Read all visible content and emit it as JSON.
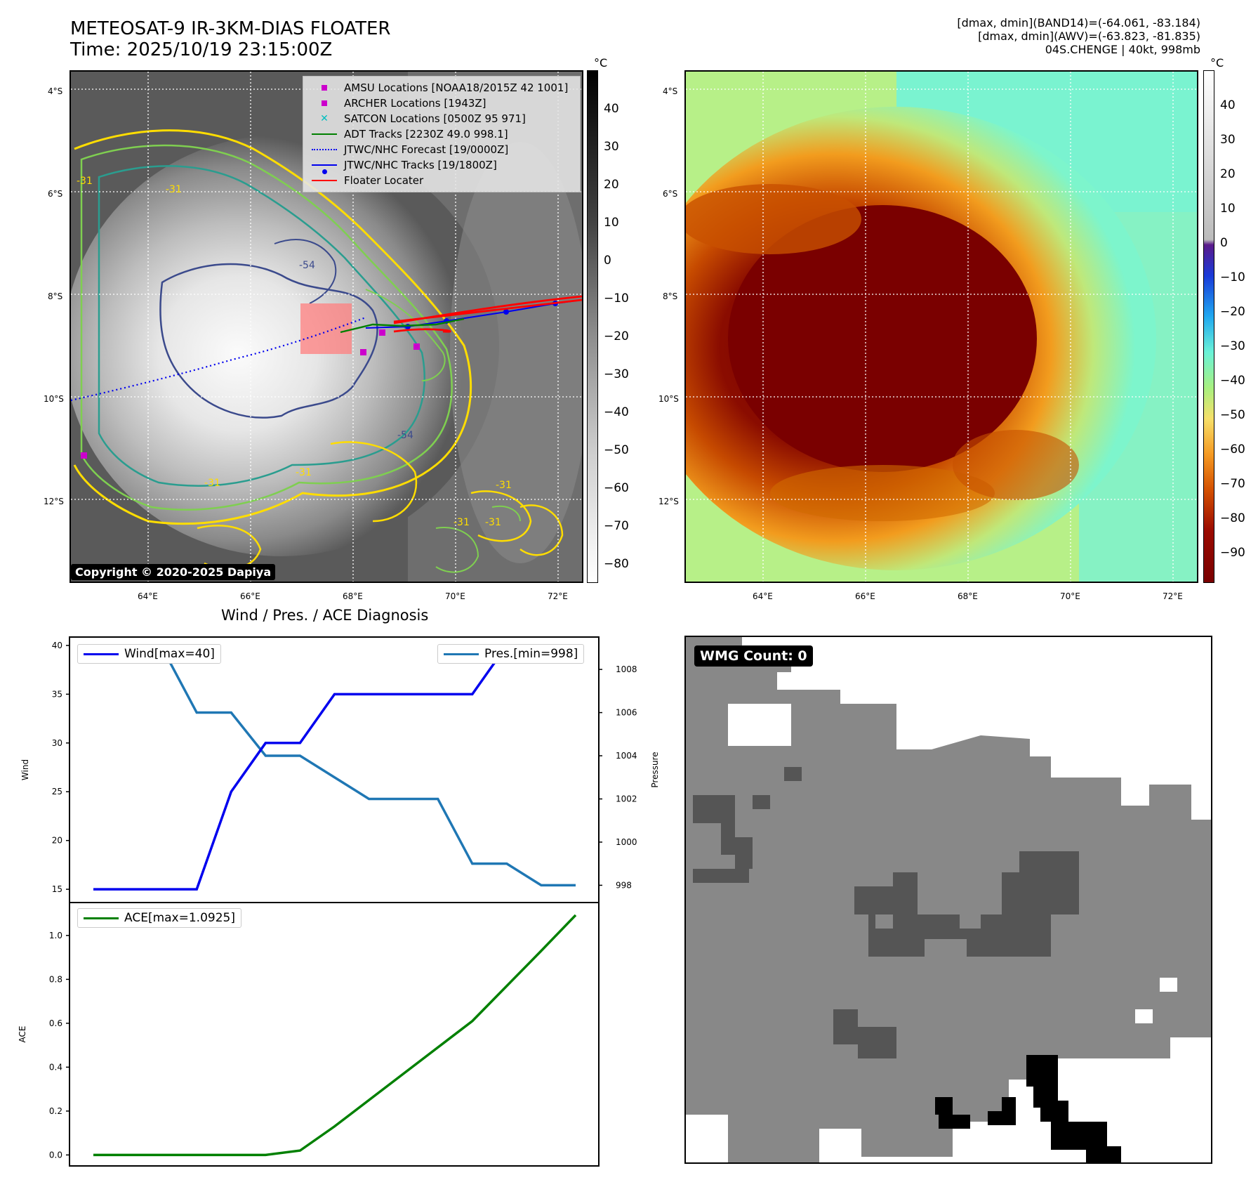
{
  "header": {
    "title_line1": "METEOSAT-9 IR-3KM-DIAS FLOATER",
    "title_line2": "Time: 2025/10/19 23:15:00Z",
    "right_line1": "[dmax, dmin](BAND14)=(-64.061, -83.184)",
    "right_line2": "[dmax, dmin](AWV)=(-63.823, -81.835)",
    "right_line3": "04S.CHENGE | 40kt, 998mb"
  },
  "map_axes": {
    "lat_labels": [
      "4°S",
      "6°S",
      "8°S",
      "10°S",
      "12°S"
    ],
    "lon_labels": [
      "64°E",
      "66°E",
      "68°E",
      "70°E",
      "72°E"
    ]
  },
  "ir_colorbar": {
    "unit": "°C",
    "ticks": [
      "40",
      "30",
      "20",
      "10",
      "0",
      "−10",
      "−20",
      "−30",
      "−40",
      "−50",
      "−60",
      "−70",
      "−80"
    ]
  },
  "awv_colorbar": {
    "unit": "°C",
    "ticks": [
      "40",
      "30",
      "20",
      "10",
      "0",
      "−10",
      "−20",
      "−30",
      "−40",
      "−50",
      "−60",
      "−70",
      "−80",
      "−90"
    ]
  },
  "legend": {
    "amsu": "AMSU Locations [NOAA18/2015Z 42 1001]",
    "archer": "ARCHER Locations [1943Z]",
    "satcon": "SATCON Locations [0500Z 95 971]",
    "adt": "ADT Tracks [2230Z 49.0 998.1]",
    "jtwc_forecast": "JTWC/NHC Forecast [19/0000Z]",
    "jtwc_tracks": "JTWC/NHC Tracks [19/1800Z]",
    "floater": "Floater Locater"
  },
  "contour_labels": [
    "-31",
    "-31",
    "-54",
    "-54",
    "-31",
    "-31",
    "-31",
    "-31",
    "-31"
  ],
  "copyright": "Copyright © 2020-2025 Dapiya",
  "wmg": {
    "label": "WMG Count: 0"
  },
  "colors": {
    "wind": "#0000ee",
    "pressure": "#1f77b4",
    "ace": "#008000",
    "floater": "#ff0000",
    "marker": "#cc00cc",
    "satcon": "#00bfbf"
  },
  "chart_data": [
    {
      "type": "line",
      "title": "Wind / Pres. / ACE Diagnosis",
      "ylabel": "Wind",
      "ylabel_right": "Pressure",
      "ylim": [
        14,
        40.5
      ],
      "ylim_right": [
        997.2,
        1009.5
      ],
      "yticks": [
        15,
        20,
        25,
        30,
        35,
        40
      ],
      "yticks_right": [
        998,
        1000,
        1002,
        1004,
        1006,
        1008
      ],
      "x": [
        0,
        1,
        2,
        3,
        4,
        5,
        6,
        7,
        8,
        9,
        10,
        11,
        12,
        13,
        14
      ],
      "series": [
        {
          "name": "Wind[max=40]",
          "axis": "left",
          "values": [
            15,
            15,
            15,
            15,
            25,
            30,
            30,
            35,
            35,
            35,
            35,
            35,
            40,
            40,
            40
          ]
        },
        {
          "name": "Pres.[min=998]",
          "axis": "right",
          "values": [
            1009,
            1009,
            1009,
            1006,
            1006,
            1004,
            1004,
            1003,
            1002,
            1002,
            1002,
            999,
            999,
            998,
            998
          ]
        }
      ]
    },
    {
      "type": "line",
      "ylabel": "ACE",
      "ylim": [
        -0.05,
        1.15
      ],
      "yticks": [
        "0.0",
        "0.2",
        "0.4",
        "0.6",
        "0.8",
        "1.0"
      ],
      "x": [
        0,
        1,
        2,
        3,
        4,
        5,
        6,
        7,
        8,
        9,
        10,
        11,
        12,
        13,
        14
      ],
      "series": [
        {
          "name": "ACE[max=1.0925]",
          "values": [
            0,
            0,
            0,
            0,
            0,
            0,
            0.02,
            0.13,
            0.25,
            0.37,
            0.49,
            0.61,
            0.77,
            0.93,
            1.0925
          ]
        }
      ]
    }
  ]
}
